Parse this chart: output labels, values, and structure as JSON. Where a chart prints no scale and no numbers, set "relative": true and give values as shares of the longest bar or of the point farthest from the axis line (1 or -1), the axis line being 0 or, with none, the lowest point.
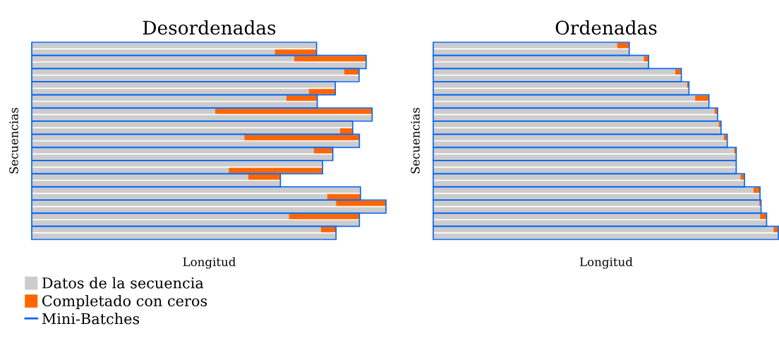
{
  "chart_data": [
    {
      "type": "bar",
      "orientation": "horizontal",
      "stacked": true,
      "relative": true,
      "title": "Desordenadas",
      "xlabel": "Longitud",
      "ylabel": "Secuencias",
      "legend": "bottom",
      "annotations": [
        "Mini-Batches"
      ],
      "categories": [
        null,
        null,
        null,
        null,
        null,
        null,
        null,
        null,
        null,
        null,
        null,
        null,
        null,
        null,
        null,
        null,
        null,
        null,
        null,
        null,
        null,
        null,
        null,
        null,
        null,
        null,
        null,
        null,
        null,
        null
      ],
      "series": [
        {
          "name": "Datos de la secuencia",
          "color": "#cccccc",
          "values": [
            0.804,
            0.686,
            0.741,
            0.944,
            0.882,
            0.924,
            0.857,
            0.782,
            0.719,
            0.806,
            0.518,
            0.961,
            0.906,
            0.87,
            0.6,
            0.925,
            0.796,
            0.85,
            0.821,
            0.556,
            0.611,
            0.702,
            0.928,
            0.834,
            0.859,
            1.0,
            0.726,
            0.925,
            0.816,
            0.858
          ]
        },
        {
          "name": "Completado con ceros",
          "color": "#ff6600",
          "values": [
            0,
            0.118,
            0.203,
            0,
            0.042,
            0,
            0,
            0.075,
            0.087,
            0,
            0.443,
            0,
            0,
            0.035,
            0.325,
            0,
            0.054,
            0,
            0,
            0.264,
            0.091,
            0,
            0,
            0.094,
            0.141,
            0,
            0.199,
            0,
            0.043,
            0
          ]
        }
      ]
    },
    {
      "type": "bar",
      "orientation": "horizontal",
      "stacked": true,
      "relative": true,
      "title": "Ordenadas",
      "xlabel": "Longitud",
      "ylabel": "Secuencias",
      "categories": [
        null,
        null,
        null,
        null,
        null,
        null,
        null,
        null,
        null,
        null,
        null,
        null,
        null,
        null,
        null,
        null,
        null,
        null,
        null,
        null,
        null,
        null,
        null,
        null,
        null,
        null,
        null,
        null,
        null,
        null
      ],
      "series": [
        {
          "color": "#cccccc",
          "values": [
            0.533,
            0.568,
            0.61,
            0.624,
            0.701,
            0.719,
            0.735,
            0.741,
            0.759,
            0.799,
            0.815,
            0.824,
            0.827,
            0.833,
            0.842,
            0.852,
            0.872,
            0.878,
            0.878,
            0.878,
            0.89,
            0.901,
            0.928,
            0.947,
            0.945,
            0.95,
            0.947,
            0.966,
            0.986,
            1.0
          ]
        },
        {
          "color": "#ff6600",
          "values": [
            0.035,
            0,
            0.014,
            0,
            0.018,
            0,
            0.006,
            0,
            0.04,
            0,
            0.009,
            0,
            0.007,
            0,
            0.01,
            0,
            0.006,
            0,
            0,
            0,
            0.012,
            0,
            0.019,
            0,
            0.005,
            0,
            0.019,
            0,
            0.014,
            0
          ]
        }
      ]
    }
  ]
}
